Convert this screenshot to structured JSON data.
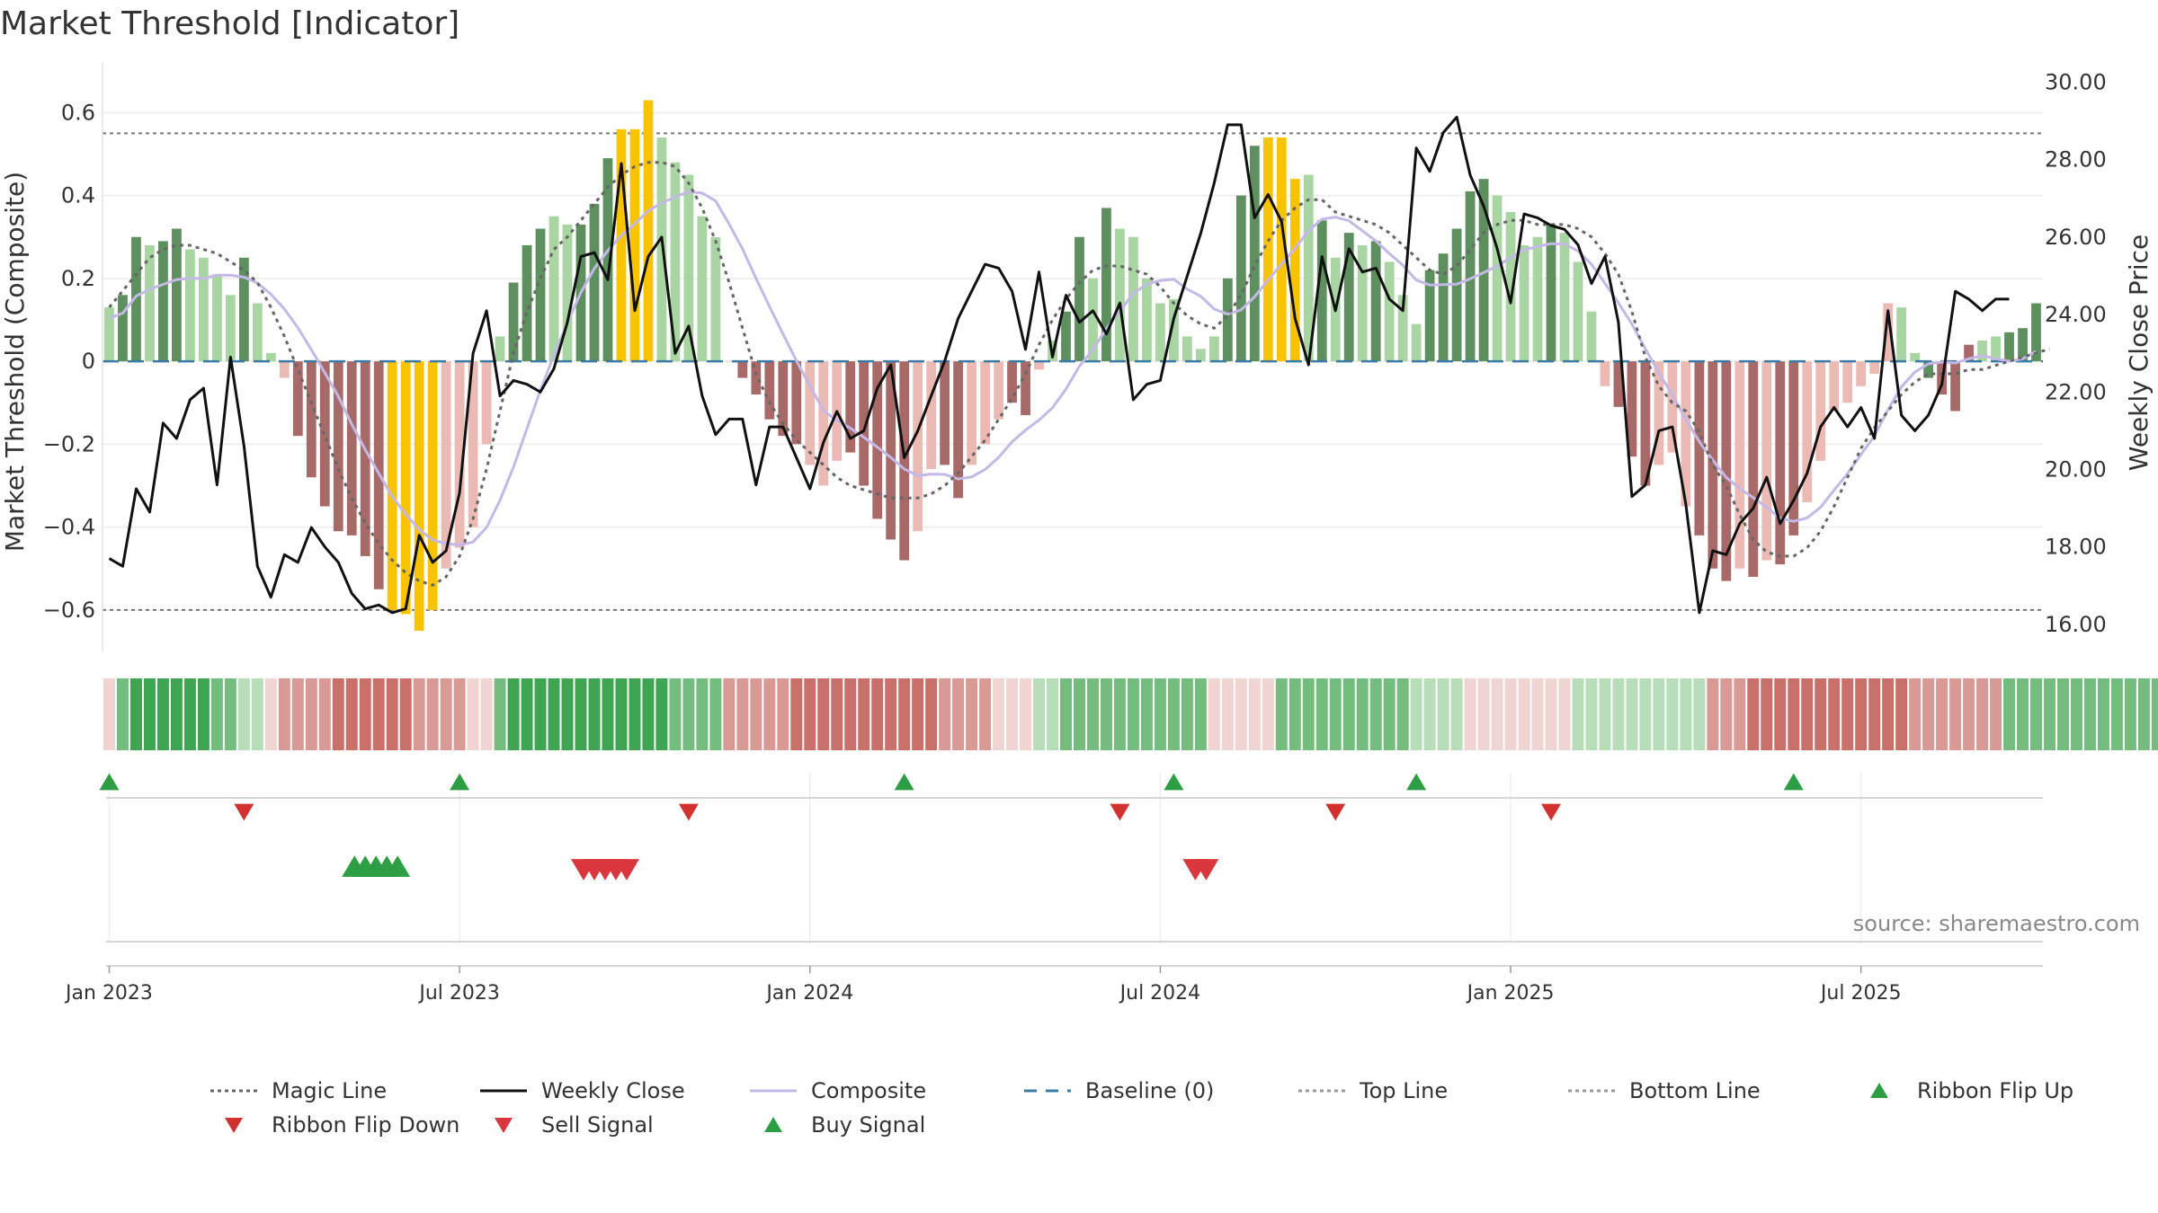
{
  "title": "Market Threshold [Indicator]",
  "source": "source: sharemaestro.com",
  "colors": {
    "dark_green": "#5e8f5e",
    "light_green": "#a8d5a2",
    "dark_red": "#a86a68",
    "light_red": "#ecbab5",
    "yellow": "#f8c300",
    "composite": "#c4b8e6",
    "baseline": "#3a7ca5",
    "buy": "#2e9e44",
    "sell": "#d9363e",
    "flip_up": "#2e9e44",
    "flip_down": "#d1312f"
  },
  "legend": [
    {
      "label": "Magic Line",
      "symbol": "dotted-line",
      "color": "#666666"
    },
    {
      "label": "Weekly Close",
      "symbol": "solid-line",
      "color": "#111111"
    },
    {
      "label": "Composite",
      "symbol": "solid-line",
      "color": "#c4b8e6"
    },
    {
      "label": "Baseline (0)",
      "symbol": "dashed-line",
      "color": "#3a7ca5"
    },
    {
      "label": "Top Line",
      "symbol": "dotted-line",
      "color": "#999999"
    },
    {
      "label": "Bottom Line",
      "symbol": "dotted-line",
      "color": "#999999"
    },
    {
      "label": "Ribbon Flip Up",
      "symbol": "triangle-up",
      "color": "#2e9e44"
    },
    {
      "label": "Ribbon Flip Down",
      "symbol": "triangle-down",
      "color": "#d1312f"
    },
    {
      "label": "Sell Signal",
      "symbol": "triangle-down",
      "color": "#d9363e"
    },
    {
      "label": "Buy Signal",
      "symbol": "triangle-up",
      "color": "#2e9e44"
    }
  ],
  "chart_data": {
    "type": "bar",
    "title": "Market Threshold [Indicator]",
    "ylabel": "Market Threshold (Composite)",
    "y2label": "Weekly Close Price",
    "ylim": [
      -0.7,
      0.72
    ],
    "y2lim": [
      15.3,
      30.5
    ],
    "yticks": [
      "0.6",
      "0.4",
      "0.2",
      "0",
      "−0.2",
      "−0.4",
      "−0.6"
    ],
    "ytick_values": [
      0.6,
      0.4,
      0.2,
      0,
      -0.2,
      -0.4,
      -0.6
    ],
    "y2ticks": [
      "30.00",
      "28.00",
      "26.00",
      "24.00",
      "22.00",
      "20.00",
      "18.00",
      "16.00"
    ],
    "y2tick_values": [
      30,
      28,
      26,
      24,
      22,
      20,
      18,
      16
    ],
    "xticks": [
      "Jan 2023",
      "Jul 2023",
      "Jan 2024",
      "Jul 2024",
      "Jan 2025",
      "Jul 2025"
    ],
    "xtick_weeks": [
      1,
      27,
      53,
      79,
      105,
      131
    ],
    "top_line": 0.55,
    "bottom_line": -0.6,
    "composite_bars": [
      0.13,
      0.16,
      0.3,
      0.28,
      0.29,
      0.32,
      0.27,
      0.25,
      0.21,
      0.16,
      0.25,
      0.14,
      0.02,
      -0.04,
      -0.18,
      -0.28,
      -0.35,
      -0.41,
      -0.42,
      -0.47,
      -0.55,
      -0.6,
      -0.61,
      -0.65,
      -0.6,
      -0.5,
      -0.45,
      -0.4,
      -0.2,
      0.06,
      0.19,
      0.28,
      0.32,
      0.35,
      0.33,
      0.33,
      0.38,
      0.49,
      0.56,
      0.56,
      0.63,
      0.54,
      0.48,
      0.45,
      0.35,
      0.3,
      0.0,
      -0.04,
      -0.08,
      -0.14,
      -0.18,
      -0.2,
      -0.25,
      -0.3,
      -0.24,
      -0.22,
      -0.3,
      -0.38,
      -0.43,
      -0.48,
      -0.41,
      -0.26,
      -0.25,
      -0.33,
      -0.25,
      -0.2,
      -0.14,
      -0.1,
      -0.13,
      -0.02,
      0.05,
      0.12,
      0.3,
      0.2,
      0.37,
      0.32,
      0.3,
      0.2,
      0.14,
      0.15,
      0.06,
      0.03,
      0.06,
      0.2,
      0.4,
      0.52,
      0.54,
      0.54,
      0.44,
      0.45,
      0.34,
      0.25,
      0.31,
      0.28,
      0.29,
      0.24,
      0.16,
      0.09,
      0.22,
      0.26,
      0.32,
      0.41,
      0.44,
      0.4,
      0.36,
      0.28,
      0.3,
      0.33,
      0.31,
      0.24,
      0.12,
      -0.06,
      -0.11,
      -0.23,
      -0.3,
      -0.25,
      -0.22,
      -0.35,
      -0.42,
      -0.5,
      -0.53,
      -0.5,
      -0.52,
      -0.48,
      -0.49,
      -0.42,
      -0.34,
      -0.24,
      -0.12,
      -0.1,
      -0.06,
      -0.03,
      0.14,
      0.13,
      0.02,
      -0.04,
      -0.08,
      -0.12,
      0.04,
      0.05,
      0.06,
      0.07,
      0.08,
      0.14
    ],
    "bar_colors": [
      "lg",
      "dg",
      "dg",
      "lg",
      "dg",
      "dg",
      "lg",
      "lg",
      "lg",
      "lg",
      "dg",
      "lg",
      "lg",
      "lr",
      "dr",
      "dr",
      "dr",
      "dr",
      "dr",
      "dr",
      "dr",
      "y",
      "y",
      "y",
      "y",
      "lr",
      "lr",
      "lr",
      "lr",
      "lg",
      "dg",
      "dg",
      "dg",
      "lg",
      "lg",
      "dg",
      "dg",
      "dg",
      "y",
      "y",
      "y",
      "lg",
      "lg",
      "lg",
      "lg",
      "lg",
      "lr",
      "dr",
      "dr",
      "dr",
      "dr",
      "dr",
      "lr",
      "lr",
      "lr",
      "dr",
      "dr",
      "dr",
      "dr",
      "dr",
      "lr",
      "lr",
      "dr",
      "dr",
      "lr",
      "lr",
      "lr",
      "dr",
      "dr",
      "lr",
      "lg",
      "dg",
      "dg",
      "lg",
      "dg",
      "lg",
      "lg",
      "lg",
      "lg",
      "lg",
      "lg",
      "lg",
      "lg",
      "dg",
      "dg",
      "dg",
      "y",
      "y",
      "y",
      "lg",
      "dg",
      "lg",
      "dg",
      "lg",
      "dg",
      "lg",
      "lg",
      "lg",
      "dg",
      "dg",
      "dg",
      "dg",
      "dg",
      "lg",
      "lg",
      "lg",
      "lg",
      "dg",
      "lg",
      "lg",
      "lg",
      "lr",
      "dr",
      "dr",
      "dr",
      "lr",
      "lr",
      "lr",
      "dr",
      "dr",
      "dr",
      "lr",
      "dr",
      "lr",
      "dr",
      "dr",
      "lr",
      "lr",
      "lr",
      "lr",
      "lr",
      "lr",
      "lr",
      "lg",
      "lg",
      "dg",
      "dr",
      "dr",
      "dr",
      "lg",
      "lg",
      "dg",
      "dg",
      "dg",
      "dg"
    ],
    "weekly_close": [
      17.7,
      17.5,
      19.5,
      18.9,
      21.2,
      20.8,
      21.8,
      22.1,
      19.6,
      22.9,
      20.6,
      17.5,
      16.7,
      17.8,
      17.6,
      18.5,
      18.0,
      17.6,
      16.8,
      16.4,
      16.5,
      16.3,
      16.4,
      18.3,
      17.6,
      17.9,
      19.4,
      23.0,
      24.1,
      21.9,
      22.3,
      22.2,
      22.0,
      22.6,
      23.8,
      25.5,
      25.6,
      24.9,
      27.9,
      24.1,
      25.5,
      26.0,
      23.0,
      23.7,
      21.9,
      20.9,
      21.3,
      21.3,
      19.6,
      21.1,
      21.1,
      20.3,
      19.5,
      20.7,
      21.5,
      20.8,
      21.0,
      22.1,
      22.7,
      20.3,
      21.0,
      21.9,
      22.8,
      23.9,
      24.6,
      25.3,
      25.2,
      24.6,
      23.1,
      25.1,
      22.9,
      24.5,
      23.8,
      24.1,
      23.5,
      24.3,
      21.8,
      22.2,
      22.3,
      23.9,
      25.0,
      26.1,
      27.4,
      28.9,
      28.9,
      26.5,
      27.1,
      26.4,
      23.9,
      22.7,
      25.5,
      24.1,
      25.7,
      25.1,
      25.2,
      24.4,
      24.1,
      28.3,
      27.7,
      28.7,
      29.1,
      27.6,
      26.8,
      25.7,
      24.3,
      26.6,
      26.5,
      26.3,
      26.2,
      25.8,
      24.8,
      25.5,
      23.8,
      19.3,
      19.6,
      21.0,
      21.1,
      19.1,
      16.3,
      17.9,
      17.8,
      18.6,
      19.0,
      19.8,
      18.6,
      19.2,
      19.9,
      21.1,
      21.6,
      21.1,
      21.6,
      20.8,
      24.1,
      21.4,
      21.0,
      21.4,
      22.2,
      24.6,
      24.4,
      24.1,
      24.4,
      24.4
    ],
    "magic_line": [
      0.13,
      0.17,
      0.21,
      0.25,
      0.27,
      0.28,
      0.28,
      0.27,
      0.26,
      0.24,
      0.22,
      0.19,
      0.13,
      0.06,
      -0.02,
      -0.1,
      -0.18,
      -0.26,
      -0.33,
      -0.39,
      -0.44,
      -0.48,
      -0.51,
      -0.53,
      -0.54,
      -0.52,
      -0.47,
      -0.38,
      -0.26,
      -0.12,
      0.02,
      0.12,
      0.2,
      0.27,
      0.3,
      0.34,
      0.38,
      0.42,
      0.45,
      0.47,
      0.48,
      0.48,
      0.47,
      0.43,
      0.37,
      0.29,
      0.19,
      0.08,
      -0.03,
      -0.1,
      -0.15,
      -0.19,
      -0.22,
      -0.25,
      -0.28,
      -0.3,
      -0.31,
      -0.32,
      -0.33,
      -0.33,
      -0.33,
      -0.32,
      -0.3,
      -0.27,
      -0.23,
      -0.19,
      -0.14,
      -0.09,
      -0.03,
      0.04,
      0.1,
      0.15,
      0.19,
      0.22,
      0.23,
      0.23,
      0.22,
      0.21,
      0.18,
      0.14,
      0.11,
      0.09,
      0.08,
      0.11,
      0.16,
      0.23,
      0.29,
      0.34,
      0.37,
      0.39,
      0.39,
      0.36,
      0.35,
      0.34,
      0.33,
      0.31,
      0.28,
      0.25,
      0.22,
      0.21,
      0.23,
      0.27,
      0.31,
      0.33,
      0.34,
      0.34,
      0.33,
      0.33,
      0.33,
      0.32,
      0.3,
      0.26,
      0.21,
      0.12,
      0.01,
      -0.06,
      -0.1,
      -0.12,
      -0.17,
      -0.25,
      -0.3,
      -0.37,
      -0.43,
      -0.46,
      -0.47,
      -0.47,
      -0.45,
      -0.41,
      -0.35,
      -0.28,
      -0.21,
      -0.16,
      -0.12,
      -0.08,
      -0.05,
      -0.03,
      -0.03,
      -0.03,
      -0.02,
      -0.02,
      -0.01,
      0.0,
      0.01,
      0.02,
      0.03
    ]
  },
  "ribbon": {
    "colors": [
      "lr",
      "mg",
      "sg",
      "sg",
      "sg",
      "sg",
      "sg",
      "sg",
      "mg",
      "mg",
      "lg",
      "lg",
      "lr",
      "mr",
      "mr",
      "mr",
      "mr",
      "sr",
      "sr",
      "sr",
      "sr",
      "sr",
      "sr",
      "mr",
      "mr",
      "mr",
      "mr",
      "lr",
      "lr",
      "mg",
      "sg",
      "sg",
      "sg",
      "sg",
      "sg",
      "sg",
      "sg",
      "sg",
      "sg",
      "sg",
      "sg",
      "sg",
      "mg",
      "mg",
      "mg",
      "mg",
      "mr",
      "mr",
      "mr",
      "mr",
      "mr",
      "sr",
      "sr",
      "sr",
      "sr",
      "sr",
      "sr",
      "sr",
      "sr",
      "sr",
      "sr",
      "sr",
      "mr",
      "mr",
      "mr",
      "mr",
      "lr",
      "lr",
      "lr",
      "lg",
      "lg",
      "mg",
      "mg",
      "mg",
      "mg",
      "mg",
      "mg",
      "mg",
      "mg",
      "mg",
      "mg",
      "mg",
      "lr",
      "lr",
      "lr",
      "lr",
      "lr",
      "mg",
      "mg",
      "mg",
      "mg",
      "mg",
      "mg",
      "mg",
      "mg",
      "mg",
      "mg",
      "lg",
      "lg",
      "lg",
      "lg",
      "lr",
      "lr",
      "lr",
      "lr",
      "lr",
      "lr",
      "lr",
      "lr",
      "lg",
      "lg",
      "lg",
      "lg",
      "lg",
      "lg",
      "lg",
      "lg",
      "lg",
      "lg",
      "mr",
      "mr",
      "mr",
      "sr",
      "sr",
      "sr",
      "sr",
      "sr",
      "sr",
      "sr",
      "sr",
      "sr",
      "sr",
      "sr",
      "sr",
      "mr",
      "mr",
      "mr",
      "mr",
      "mr",
      "mr",
      "mr",
      "mg",
      "mg",
      "mg",
      "mg",
      "mg",
      "mg",
      "mg",
      "mg",
      "mg",
      "mg",
      "mg",
      "mg",
      "mg",
      "lg",
      "lg"
    ],
    "palette": {
      "sg": "#3fa553",
      "mg": "#74bd7f",
      "lg": "#b7ddb9",
      "sr": "#c9706b",
      "mr": "#d99a95",
      "lr": "#efd4d1"
    }
  },
  "flip_up_weeks": [
    1,
    27,
    60,
    80,
    98,
    126
  ],
  "flip_down_weeks": [
    11,
    44,
    76,
    92,
    108
  ],
  "buy_signal_weeks": [
    19.2,
    20.0,
    20.8,
    21.6,
    22.4
  ],
  "sell_signal_weeks": [
    36.2,
    37.0,
    37.8,
    38.6,
    39.4,
    81.6,
    82.4
  ]
}
